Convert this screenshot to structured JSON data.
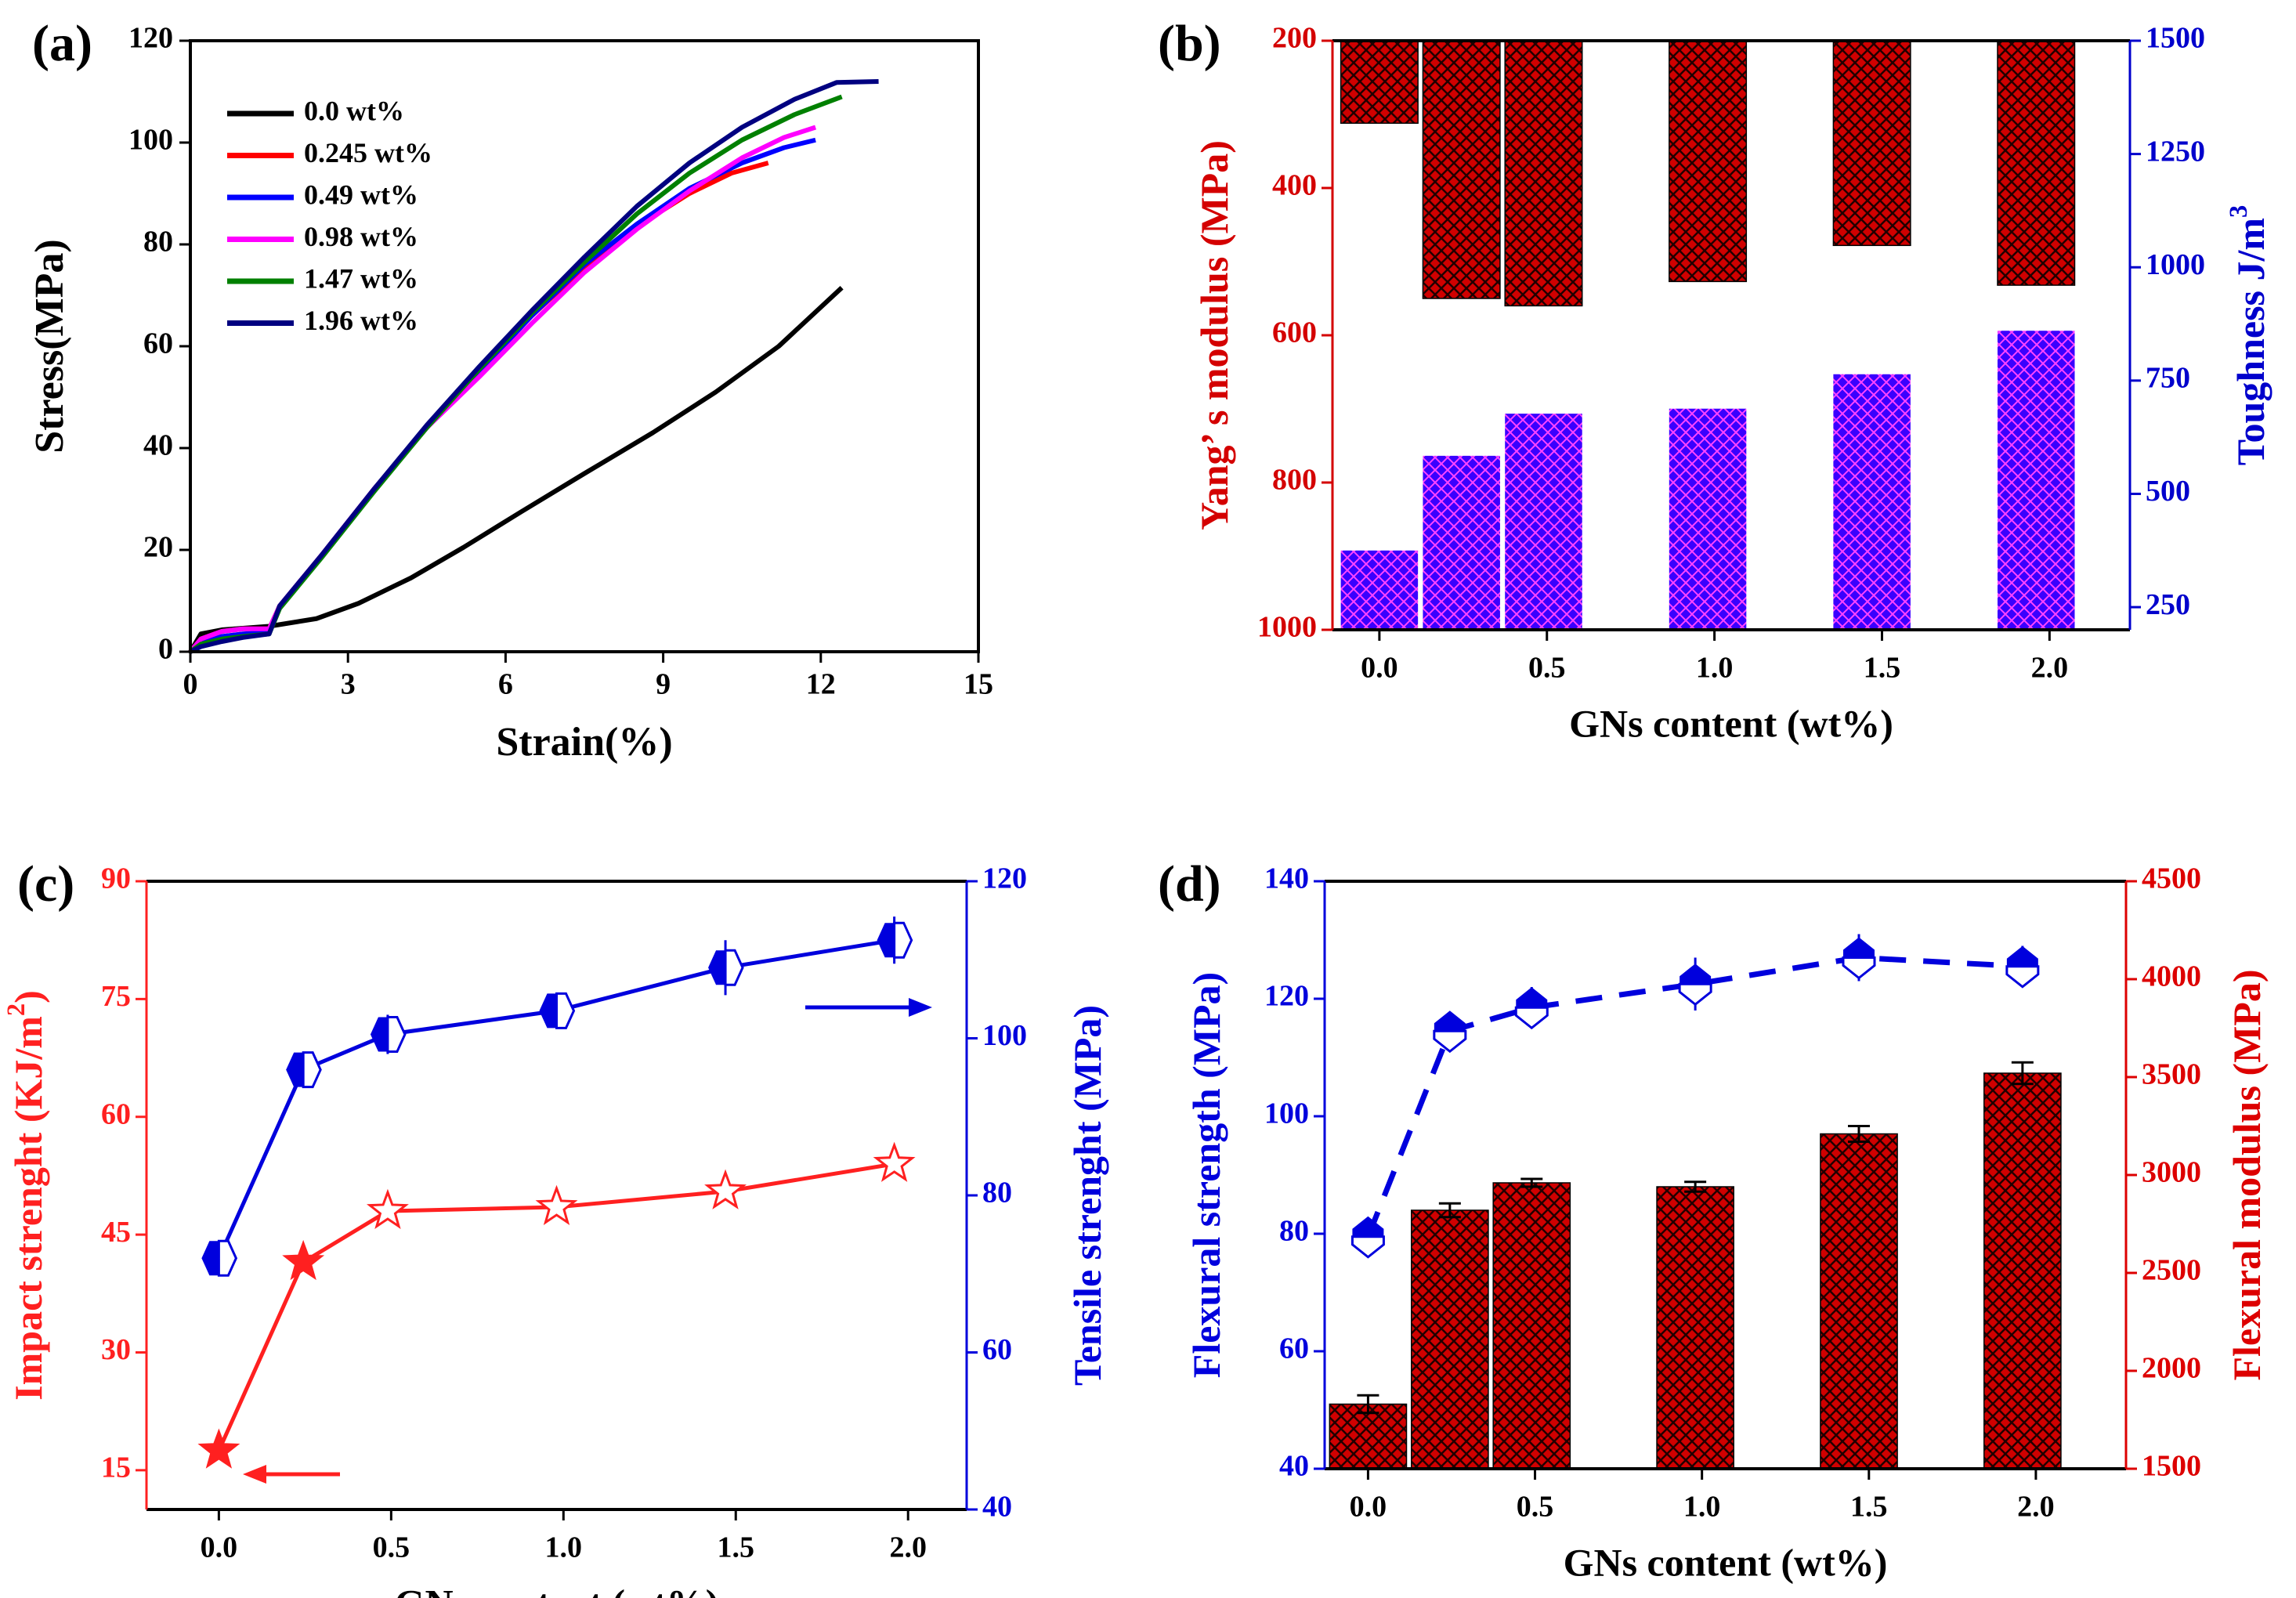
{
  "chart_data": [
    {
      "panel_label": "(a)",
      "type": "line",
      "xlabel": "Strain(%)",
      "ylabel": "Stress(MPa)",
      "xlim": [
        0,
        15
      ],
      "ylim": [
        0,
        120
      ],
      "xticks": [
        0,
        3,
        6,
        9,
        12,
        15
      ],
      "yticks": [
        0,
        20,
        40,
        60,
        80,
        100,
        120
      ],
      "legend_position": "top-left",
      "series": [
        {
          "name": "0.0 wt%",
          "color": "#000000",
          "points": [
            [
              0,
              0
            ],
            [
              0.2,
              3.5
            ],
            [
              0.6,
              4.3
            ],
            [
              1.5,
              5
            ],
            [
              2.4,
              6.5
            ],
            [
              3.2,
              9.5
            ],
            [
              4.2,
              14.5
            ],
            [
              5.2,
              20.5
            ],
            [
              6.3,
              27.5
            ],
            [
              7.5,
              35
            ],
            [
              8.8,
              43
            ],
            [
              10,
              51
            ],
            [
              11.2,
              60
            ],
            [
              12.4,
              71.5
            ]
          ]
        },
        {
          "name": "0.245 wt%",
          "color": "#ff0000",
          "points": [
            [
              0,
              0
            ],
            [
              0.2,
              2.5
            ],
            [
              0.6,
              4
            ],
            [
              1,
              4.5
            ],
            [
              1.5,
              4.5
            ],
            [
              1.7,
              9
            ],
            [
              2.5,
              19
            ],
            [
              3.5,
              32
            ],
            [
              4.5,
              44
            ],
            [
              5.5,
              55
            ],
            [
              6.5,
              66
            ],
            [
              7.5,
              75.5
            ],
            [
              8.5,
              83.5
            ],
            [
              9.5,
              90
            ],
            [
              10.3,
              94
            ],
            [
              11,
              96
            ]
          ]
        },
        {
          "name": "0.49 wt%",
          "color": "#0000ff",
          "points": [
            [
              0,
              0
            ],
            [
              0.2,
              2
            ],
            [
              0.6,
              3
            ],
            [
              1,
              3.5
            ],
            [
              1.5,
              3.8
            ],
            [
              1.7,
              9
            ],
            [
              2.5,
              19
            ],
            [
              3.5,
              32
            ],
            [
              4.5,
              44
            ],
            [
              5.5,
              55
            ],
            [
              6.5,
              66
            ],
            [
              7.5,
              76
            ],
            [
              8.5,
              84
            ],
            [
              9.5,
              91
            ],
            [
              10.5,
              96
            ],
            [
              11.3,
              99
            ],
            [
              11.9,
              100.5
            ]
          ]
        },
        {
          "name": "0.98 wt%",
          "color": "#ff00ff",
          "points": [
            [
              0,
              0
            ],
            [
              0.2,
              2.5
            ],
            [
              0.6,
              4
            ],
            [
              1,
              4.5
            ],
            [
              1.5,
              4.5
            ],
            [
              1.7,
              9
            ],
            [
              2.5,
              19
            ],
            [
              3.5,
              32
            ],
            [
              4.5,
              44
            ],
            [
              5.5,
              54
            ],
            [
              6.5,
              64.5
            ],
            [
              7.5,
              74.5
            ],
            [
              8.5,
              83
            ],
            [
              9.5,
              90.5
            ],
            [
              10.5,
              97
            ],
            [
              11.3,
              101
            ],
            [
              11.9,
              103
            ]
          ]
        },
        {
          "name": "1.47 wt%",
          "color": "#008000",
          "points": [
            [
              0,
              0
            ],
            [
              0.2,
              1.5
            ],
            [
              0.6,
              2.5
            ],
            [
              1,
              3
            ],
            [
              1.5,
              3.5
            ],
            [
              1.7,
              8.5
            ],
            [
              2.5,
              18.5
            ],
            [
              3.5,
              31.5
            ],
            [
              4.5,
              44
            ],
            [
              5.5,
              55.5
            ],
            [
              6.5,
              66.5
            ],
            [
              7.5,
              76.5
            ],
            [
              8.5,
              86
            ],
            [
              9.5,
              94
            ],
            [
              10.5,
              100.5
            ],
            [
              11.5,
              105.5
            ],
            [
              12.4,
              109
            ]
          ]
        },
        {
          "name": "1.96 wt%",
          "color": "#000080",
          "points": [
            [
              0,
              0
            ],
            [
              0.2,
              1
            ],
            [
              0.6,
              2
            ],
            [
              1,
              2.8
            ],
            [
              1.5,
              3.5
            ],
            [
              1.7,
              9
            ],
            [
              2.5,
              19
            ],
            [
              3.5,
              32
            ],
            [
              4.5,
              44.5
            ],
            [
              5.5,
              56
            ],
            [
              6.5,
              67
            ],
            [
              7.5,
              77.5
            ],
            [
              8.5,
              87.5
            ],
            [
              9.5,
              96
            ],
            [
              10.5,
              103
            ],
            [
              11.5,
              108.5
            ],
            [
              12.3,
              111.8
            ],
            [
              13.1,
              112
            ]
          ]
        }
      ]
    },
    {
      "panel_label": "(b)",
      "type": "bar",
      "xlabel": "GNs content (wt%)",
      "x": [
        0.0,
        0.245,
        0.49,
        0.98,
        1.47,
        1.96
      ],
      "xlim": [
        -0.14,
        2.24
      ],
      "xticks": [
        "0.0",
        "0.5",
        "1.0",
        "1.5",
        "2.0"
      ],
      "left_axis": {
        "label": "Yang’ s  modulus (MPa)",
        "ylim": [
          1000,
          200
        ],
        "inverted": true,
        "yticks": [
          200,
          400,
          600,
          800,
          1000
        ],
        "color": "#d40000"
      },
      "right_axis": {
        "label": "Toughness J/m",
        "label_sup": "3",
        "ylim": [
          200,
          1500
        ],
        "yticks": [
          250,
          500,
          750,
          1000,
          1250,
          1500
        ],
        "color": "#0000cc"
      },
      "series": [
        {
          "name": "Young's modulus",
          "axis": "left",
          "color": "#c00000",
          "values": [
            312,
            550,
            560,
            527,
            478,
            532
          ]
        },
        {
          "name": "Toughness",
          "axis": "right",
          "color": "#3a00ff",
          "values": [
            375,
            584,
            677,
            688,
            764,
            860
          ]
        }
      ]
    },
    {
      "panel_label": "(c)",
      "type": "scatter",
      "xlabel": "GNs content (wt%)",
      "x": [
        0.0,
        0.245,
        0.49,
        0.98,
        1.47,
        1.96
      ],
      "xlim": [
        -0.21,
        2.17
      ],
      "xticks": [
        "0.0",
        "0.5",
        "1.0",
        "1.5",
        "2.0"
      ],
      "left_axis": {
        "label": "Impact strenght (KJ/m",
        "label_sup": "2",
        "label_end": ")",
        "ylim": [
          10,
          90
        ],
        "yticks": [
          15,
          30,
          45,
          60,
          75,
          90
        ],
        "color": "#ff2020"
      },
      "right_axis": {
        "label": "Tensile strenght (MPa)",
        "ylim": [
          40,
          120
        ],
        "yticks": [
          40,
          60,
          80,
          100,
          120
        ],
        "color": "#0000dd"
      },
      "series": [
        {
          "name": "Impact strength",
          "axis": "left",
          "color": "#ff2020",
          "marker": "star",
          "values": [
            17.5,
            41.5,
            48,
            48.5,
            50.5,
            54
          ],
          "errors": [
            1.5,
            1.5,
            1.5,
            1.5,
            1.5,
            1.5
          ]
        },
        {
          "name": "Tensile strength",
          "axis": "right",
          "color": "#0000dd",
          "marker": "hexagon",
          "values": [
            72,
            96,
            100.5,
            103.5,
            109,
            112.5
          ],
          "errors": [
            1,
            1.5,
            2.5,
            1.5,
            3.5,
            3
          ]
        }
      ],
      "annotations": [
        {
          "type": "arrow",
          "points_to": "right-axis"
        },
        {
          "type": "arrow",
          "points_to": "left-axis"
        }
      ]
    },
    {
      "panel_label": "(d)",
      "type": "bar",
      "xlabel": "GNs content (wt%)",
      "x": [
        0.0,
        0.245,
        0.49,
        0.98,
        1.47,
        1.96
      ],
      "xlim": [
        -0.13,
        2.27
      ],
      "xticks": [
        "0.0",
        "0.5",
        "1.0",
        "1.5",
        "2.0"
      ],
      "left_axis": {
        "label": "Flexural strength (MPa)",
        "ylim": [
          40,
          140
        ],
        "yticks": [
          40,
          60,
          80,
          100,
          120,
          140
        ],
        "color": "#0000dd"
      },
      "right_axis": {
        "label": "Flexural modulus (MPa)",
        "ylim": [
          1500,
          4500
        ],
        "yticks": [
          1500,
          2000,
          2500,
          3000,
          3500,
          4000,
          4500
        ],
        "color": "#dd0000"
      },
      "series": [
        {
          "name": "Flexural strength",
          "axis": "left",
          "type": "line-dashed",
          "color": "#0000dd",
          "values": [
            79.5,
            114.5,
            118.5,
            122.5,
            127,
            125.5
          ],
          "errors": [
            2.5,
            2,
            3.5,
            4.5,
            4,
            3.5
          ]
        },
        {
          "name": "Flexural modulus",
          "axis": "right",
          "type": "bar",
          "color": "#c00000",
          "values": [
            1830,
            2820,
            2960,
            2940,
            3210,
            3520
          ],
          "errors": [
            45,
            35,
            20,
            25,
            40,
            55
          ]
        }
      ]
    }
  ]
}
